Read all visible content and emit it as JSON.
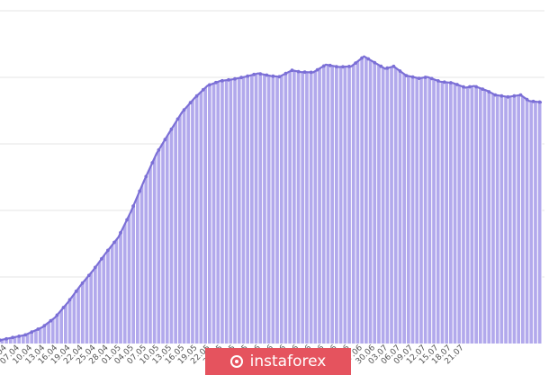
{
  "chart_data": {
    "type": "area",
    "title": "",
    "xlabel": "",
    "ylabel": "",
    "grid": true,
    "legend": "none",
    "tick_labels": [
      "04.04",
      "07.04",
      "10.04",
      "13.04",
      "16.04",
      "19.04",
      "22.04",
      "25.04",
      "28.04",
      "01.05",
      "04.05",
      "07.05",
      "10.05",
      "13.05",
      "16.05",
      "19.05",
      "22.05",
      "25.05",
      "28.05",
      "31.05",
      "03.06",
      "06.06",
      "09.06",
      "12.06",
      "15.06",
      "18.06",
      "21.06",
      "24.06",
      "27.06",
      "30.06",
      "03.07",
      "06.07",
      "09.07",
      "12.07",
      "15.07",
      "18.07",
      "21.07"
    ],
    "x_start": "03.04",
    "x_end": "23.07",
    "ylim": [
      0,
      100
    ],
    "series": [
      {
        "color": "#7b6fd6",
        "fill": "#b2a9ec",
        "points": [
          [
            "03.04",
            1.0
          ],
          [
            "09.04",
            2.6
          ],
          [
            "13.04",
            4.9
          ],
          [
            "16.04",
            7.8
          ],
          [
            "19.04",
            12.3
          ],
          [
            "22.04",
            17.4
          ],
          [
            "25.04",
            22.0
          ],
          [
            "28.04",
            27.2
          ],
          [
            "01.05",
            32.0
          ],
          [
            "04.05",
            39.8
          ],
          [
            "07.05",
            48.8
          ],
          [
            "10.05",
            57.1
          ],
          [
            "13.05",
            63.4
          ],
          [
            "16.05",
            69.5
          ],
          [
            "19.05",
            73.8
          ],
          [
            "22.05",
            77.5
          ],
          [
            "25.05",
            78.9
          ],
          [
            "28.05",
            79.4
          ],
          [
            "31.05",
            80.2
          ],
          [
            "03.06",
            81.2
          ],
          [
            "06.06",
            80.4
          ],
          [
            "08.06",
            80.2
          ],
          [
            "11.06",
            82.1
          ],
          [
            "13.06",
            81.6
          ],
          [
            "16.06",
            81.5
          ],
          [
            "19.06",
            83.8
          ],
          [
            "22.06",
            83.1
          ],
          [
            "25.06",
            83.3
          ],
          [
            "28.06",
            86.3
          ],
          [
            "30.06",
            84.8
          ],
          [
            "03.07",
            82.6
          ],
          [
            "05.07",
            83.3
          ],
          [
            "08.07",
            80.5
          ],
          [
            "11.07",
            79.7
          ],
          [
            "13.07",
            80.1
          ],
          [
            "16.07",
            78.7
          ],
          [
            "19.07",
            78.3
          ],
          [
            "22.07",
            76.9
          ],
          [
            "24.07",
            77.4
          ],
          [
            "27.07",
            76.0
          ],
          [
            "29.07",
            74.7
          ],
          [
            "01.08",
            74.1
          ],
          [
            "04.08",
            74.7
          ],
          [
            "06.08",
            72.9
          ],
          [
            "09.08",
            72.5
          ]
        ]
      }
    ]
  },
  "watermark": {
    "text": "instaforex"
  }
}
